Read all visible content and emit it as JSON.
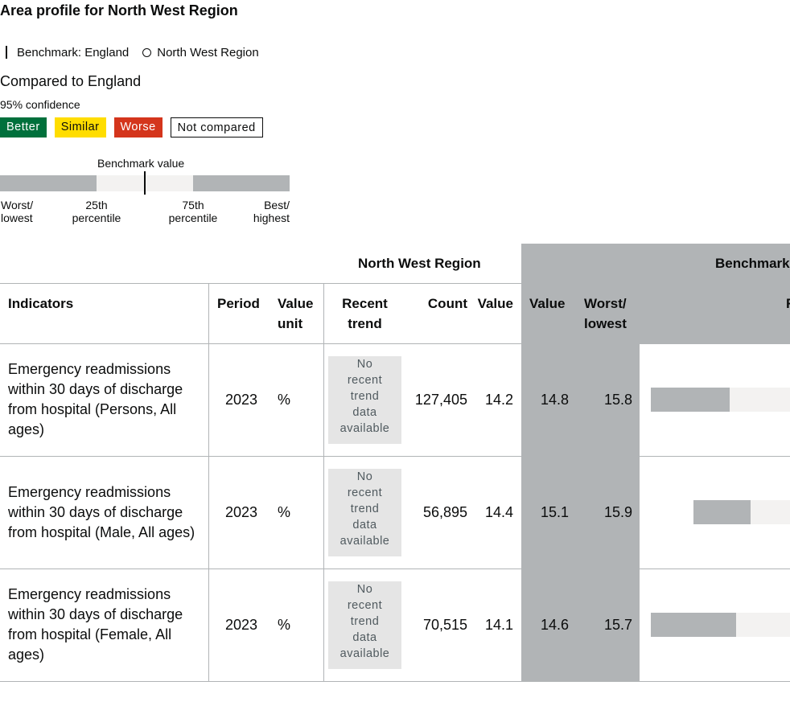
{
  "title": "Area profile for North West Region",
  "legend": {
    "benchmark": "Benchmark: England",
    "area": "North West Region"
  },
  "compared": {
    "title": "Compared to England",
    "confidence": "95% confidence",
    "badges": {
      "better": "Better",
      "similar": "Similar",
      "worse": "Worse",
      "not_compared": "Not compared"
    },
    "colors": {
      "better": "#00703c",
      "similar": "#ffdd00",
      "worse": "#d4351c"
    }
  },
  "key": {
    "benchmark_value": "Benchmark value",
    "worst": [
      "Worst/",
      "lowest"
    ],
    "p25": [
      "25th",
      "percentile"
    ],
    "p75": [
      "75th",
      "percentile"
    ],
    "best": [
      "Best/",
      "highest"
    ]
  },
  "table": {
    "group_headers": {
      "area": "North West Region",
      "benchmark": "Benchmark"
    },
    "headers": {
      "indicators": "Indicators",
      "period": "Period",
      "value_unit": [
        "Value",
        "unit"
      ],
      "recent_trend": [
        "Recent",
        "trend"
      ],
      "count": "Count",
      "value": "Value",
      "bm_value": "Value",
      "worst": [
        "Worst/",
        "lowest"
      ],
      "range_partial": "R"
    },
    "rows": [
      {
        "indicator": [
          "Emergency readmissions",
          "within 30 days of discharge",
          "from hospital (Persons, All",
          "ages)"
        ],
        "period": "2023",
        "unit": "%",
        "trend": [
          "No",
          "recent",
          "trend",
          "data",
          "available"
        ],
        "count": "127,405",
        "value": "14.2",
        "bm_value": "14.8",
        "worst": "15.8"
      },
      {
        "indicator": [
          "Emergency readmissions",
          "within 30 days of discharge",
          "from hospital (Male, All ages)"
        ],
        "period": "2023",
        "unit": "%",
        "trend": [
          "No",
          "recent",
          "trend",
          "data",
          "available"
        ],
        "count": "56,895",
        "value": "14.4",
        "bm_value": "15.1",
        "worst": "15.9"
      },
      {
        "indicator": [
          "Emergency readmissions",
          "within 30 days of discharge",
          "from hospital (Female, All",
          "ages)"
        ],
        "period": "2023",
        "unit": "%",
        "trend": [
          "No",
          "recent",
          "trend",
          "data",
          "available"
        ],
        "count": "70,515",
        "value": "14.1",
        "bm_value": "14.6",
        "worst": "15.7"
      }
    ]
  }
}
